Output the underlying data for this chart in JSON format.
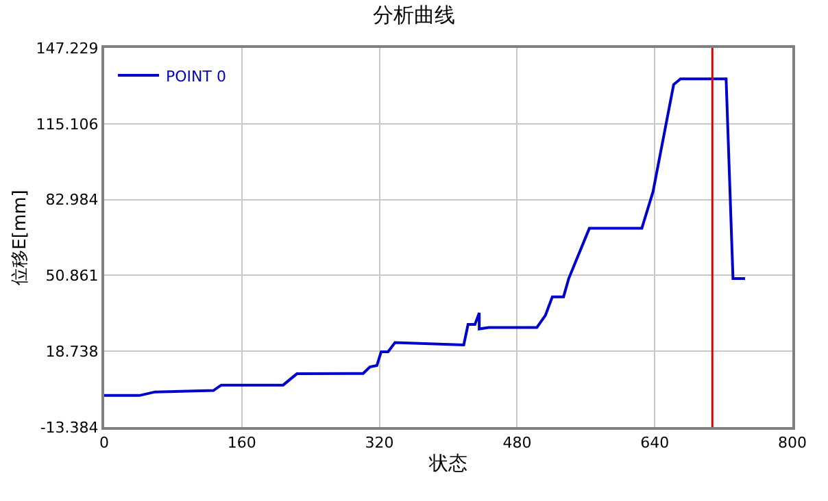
{
  "chart_data": {
    "type": "line",
    "title": "分析曲线",
    "xlabel": "状态",
    "ylabel": "位移E[mm]",
    "series": [
      {
        "name": "POINT 0",
        "color": "#0000cc",
        "x": [
          0,
          41,
          59,
          127,
          136,
          208,
          224,
          301,
          309,
          317,
          322,
          330,
          338,
          418,
          423,
          431,
          436,
          436,
          447,
          503,
          513,
          521,
          534,
          540,
          564,
          625,
          638,
          662,
          670,
          723,
          731,
          745
        ],
        "values": [
          0,
          0,
          1.5,
          2.1,
          4.4,
          4.4,
          9.2,
          9.3,
          12.1,
          12.7,
          18.5,
          18.5,
          22.4,
          21.4,
          30.1,
          30.1,
          35,
          28.2,
          28.8,
          28.8,
          34,
          41.8,
          41.8,
          49.5,
          70.8,
          70.8,
          86.3,
          131.7,
          134.1,
          134.1,
          49.5,
          49.5
        ]
      }
    ],
    "xlim": [
      0,
      800
    ],
    "xticks": [
      0,
      160,
      320,
      480,
      640,
      800
    ],
    "ylim": [
      -13.384,
      147.229
    ],
    "yticks": [
      -13.384,
      18.738,
      50.861,
      82.984,
      115.106,
      147.229
    ],
    "ref_lines": [
      {
        "axis": "x",
        "value": 707,
        "color": "#dd0000"
      }
    ],
    "grid": true,
    "legend": "top left",
    "marker": "none",
    "line_style": "solid"
  }
}
